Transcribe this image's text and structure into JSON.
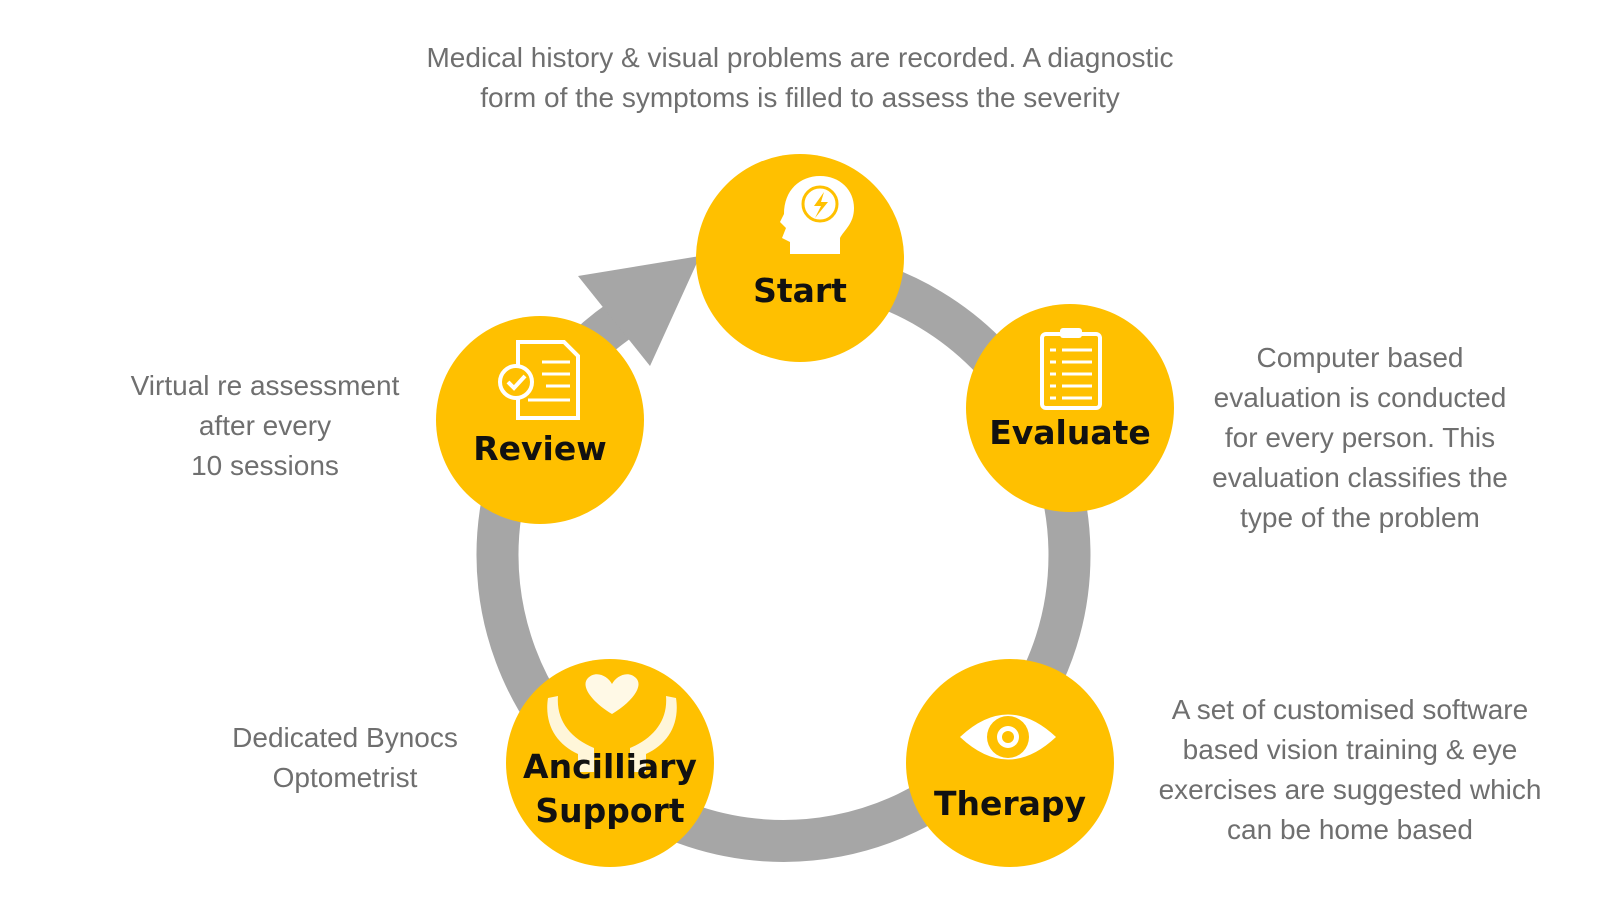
{
  "top_description": {
    "lines": [
      "Medical history & visual problems  are recorded. A diagnostic",
      "form of the symptoms is filled to assess the severity"
    ]
  },
  "evaluate_description": {
    "lines": [
      "Computer based",
      "evaluation is conducted",
      "for every person. This",
      "evaluation classifies the",
      "type of the problem"
    ]
  },
  "therapy_description": {
    "lines": [
      "A set of customised software",
      "based vision training & eye",
      "exercises are suggested which",
      "can be home based"
    ]
  },
  "ancillary_description": {
    "lines": [
      "Dedicated Bynocs",
      "Optometrist"
    ]
  },
  "review_description": {
    "lines": [
      "Virtual re assessment",
      "after every",
      "10 sessions"
    ]
  },
  "nodes": {
    "start": {
      "label": "Start",
      "icon": "head-brain-lightning-icon"
    },
    "evaluate": {
      "label": "Evaluate",
      "icon": "clipboard-checklist-icon"
    },
    "therapy": {
      "label": "Therapy",
      "icon": "eye-icon"
    },
    "ancillary": {
      "label_line1": "Ancilliary",
      "label_line2": "Support",
      "icon": "hands-heart-icon"
    },
    "review": {
      "label": "Review",
      "icon": "document-check-icon"
    }
  },
  "colors": {
    "node_fill": "#FFC000",
    "cycle_arrow": "#A6A6A6",
    "description_text": "#6F6F6F",
    "label_text": "#111111",
    "icon_fill": "#FFFFFF"
  }
}
